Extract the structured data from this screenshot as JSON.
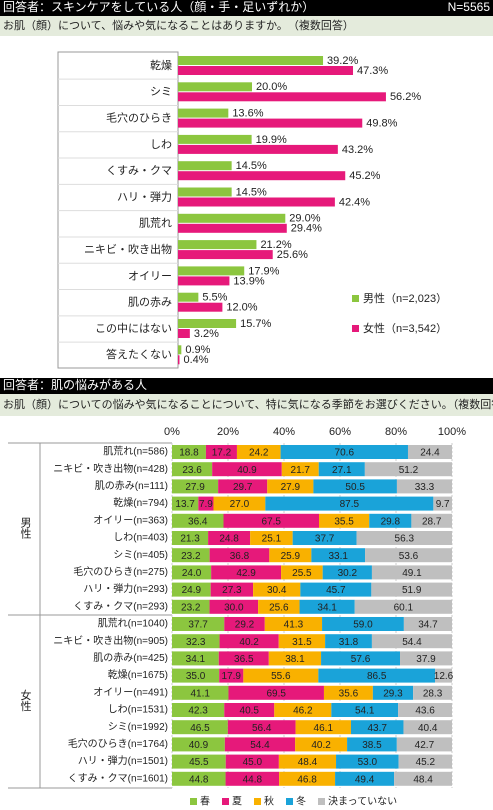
{
  "top_section": {
    "header": "回答者：スキンケアをしている人（顔・手・足いずれか）",
    "n": "N=5565",
    "question": "お肌（顔）について、悩みや気になることはありますか。　（複数回答）"
  },
  "bottom_section": {
    "header": "回答者：肌の悩みがある人",
    "question": "お肌（顔）についての悩みや気になることについて、特に気になる季節をお選びください。（複数回答）"
  },
  "chart_data": [
    {
      "type": "bar",
      "orientation": "horizontal",
      "xlim": [
        0,
        60
      ],
      "categories": [
        "乾燥",
        "シミ",
        "毛穴のひらき",
        "しわ",
        "くすみ・クマ",
        "ハリ・弾力",
        "肌荒れ",
        "ニキビ・吹き出物",
        "オイリー",
        "肌の赤み",
        "この中にはない",
        "答えたくない"
      ],
      "series": [
        {
          "name": "男性（n=2,023）",
          "color": "#8cc63f",
          "values": [
            39.2,
            20,
            13.6,
            19.9,
            14.5,
            14.5,
            29,
            21.2,
            17.9,
            5.5,
            15.7,
            0.9
          ],
          "value_labels": [
            "39.2%",
            "20.0%",
            "13.6%",
            "19.9%",
            "14.5%",
            "14.5%",
            "29.0%",
            "21.2%",
            "17.9%",
            "5.5%",
            "15.7%",
            "0.9%"
          ]
        },
        {
          "name": "女性（n=3,542）",
          "color": "#e6197a",
          "values": [
            47.3,
            56.2,
            49.8,
            43.2,
            45.2,
            42.4,
            29.4,
            25.6,
            13.9,
            12,
            3.2,
            0.4
          ],
          "value_labels": [
            "47.3%",
            "56.2%",
            "49.8%",
            "43.2%",
            "45.2%",
            "42.4%",
            "29.4%",
            "25.6%",
            "13.9%",
            "12.0%",
            "3.2%",
            "0.4%"
          ]
        }
      ]
    },
    {
      "type": "stacked_percent_bar",
      "orientation": "horizontal",
      "group": "男性",
      "xlim": [
        0,
        100
      ],
      "grid": true,
      "xticks": [
        {
          "value": 0,
          "label": "0%"
        },
        {
          "value": 20,
          "label": "20%"
        },
        {
          "value": 40,
          "label": "40%"
        },
        {
          "value": 60,
          "label": "60%"
        },
        {
          "value": 80,
          "label": "80%"
        },
        {
          "value": 100,
          "label": "100%"
        }
      ],
      "categories": [
        "肌荒れ(n=586)",
        "ニキビ・吹き出物(n=428)",
        "肌の赤み(n=111)",
        "乾燥(n=794)",
        "オイリー(n=363)",
        "しわ(n=403)",
        "シミ(n=405)",
        "毛穴のひらき(n=275)",
        "ハリ・弾力(n=293)",
        "くすみ・クマ(n=293)"
      ],
      "series": [
        {
          "name": "春",
          "color": "#8cc63f",
          "values": [
            18.8,
            23.6,
            27.9,
            13.7,
            36.4,
            21.3,
            23.2,
            24,
            24.9,
            23.2
          ],
          "value_labels": [
            "18.8",
            "23.6",
            "27.9",
            "13.7",
            "36.4",
            "21.3",
            "23.2",
            "24.0",
            "24.9",
            "23.2"
          ]
        },
        {
          "name": "夏",
          "color": "#e6197a",
          "values": [
            17.2,
            40.9,
            29.7,
            7.9,
            67.5,
            24.8,
            36.8,
            42.9,
            27.3,
            30
          ],
          "value_labels": [
            "17.2",
            "40.9",
            "29.7",
            "7.9",
            "67.5",
            "24.8",
            "36.8",
            "42.9",
            "27.3",
            "30.0"
          ]
        },
        {
          "name": "秋",
          "color": "#f9b100",
          "values": [
            24.2,
            21.7,
            27.9,
            27,
            35.5,
            25.1,
            25.9,
            25.5,
            30.4,
            25.6
          ],
          "value_labels": [
            "24.2",
            "21.7",
            "27.9",
            "27.0",
            "35.5",
            "25.1",
            "25.9",
            "25.5",
            "30.4",
            "25.6"
          ]
        },
        {
          "name": "冬",
          "color": "#1aa3d9",
          "values": [
            70.6,
            27.1,
            50.5,
            87.5,
            29.8,
            37.7,
            33.1,
            30.2,
            45.7,
            34.1
          ],
          "value_labels": [
            "70.6",
            "27.1",
            "50.5",
            "87.5",
            "29.8",
            "37.7",
            "33.1",
            "30.2",
            "45.7",
            "34.1"
          ]
        },
        {
          "name": "決まっていない",
          "color": "#bfbfbf",
          "values": [
            24.4,
            51.2,
            33.3,
            9.7,
            28.7,
            56.3,
            53.6,
            49.1,
            51.9,
            60.1
          ],
          "value_labels": [
            "24.4",
            "51.2",
            "33.3",
            "9.7",
            "28.7",
            "56.3",
            "53.6",
            "49.1",
            "51.9",
            "60.1"
          ]
        }
      ]
    },
    {
      "type": "stacked_percent_bar",
      "orientation": "horizontal",
      "group": "女性",
      "xlim": [
        0,
        100
      ],
      "categories": [
        "肌荒れ(n=1040)",
        "ニキビ・吹き出物(n=905)",
        "肌の赤み(n=425)",
        "乾燥(n=1675)",
        "オイリー(n=491)",
        "しわ(n=1531)",
        "シミ(n=1992)",
        "毛穴のひらき(n=1764)",
        "ハリ・弾力(n=1501)",
        "くすみ・クマ(n=1601)"
      ],
      "series": [
        {
          "color": "#8cc63f",
          "values": [
            37.7,
            32.3,
            34.1,
            35,
            41.1,
            42.3,
            46.5,
            40.9,
            45.5,
            44.8
          ],
          "value_labels": [
            "37.7",
            "32.3",
            "34.1",
            "35.0",
            "41.1",
            "42.3",
            "46.5",
            "40.9",
            "45.5",
            "44.8"
          ]
        },
        {
          "color": "#e6197a",
          "values": [
            29.2,
            40.2,
            36.5,
            17.9,
            69.5,
            40.5,
            56.4,
            54.4,
            45,
            44.8
          ],
          "value_labels": [
            "29.2",
            "40.2",
            "36.5",
            "17.9",
            "69.5",
            "40.5",
            "56.4",
            "54.4",
            "45.0",
            "44.8"
          ]
        },
        {
          "color": "#f9b100",
          "values": [
            41.3,
            31.5,
            38.1,
            55.6,
            35.6,
            46.2,
            46.1,
            40.2,
            48.4,
            46.8
          ],
          "value_labels": [
            "41.3",
            "31.5",
            "38.1",
            "55.6",
            "35.6",
            "46.2",
            "46.1",
            "40.2",
            "48.4",
            "46.8"
          ]
        },
        {
          "color": "#1aa3d9",
          "values": [
            59,
            31.8,
            57.6,
            86.5,
            29.3,
            54.1,
            43.7,
            38.5,
            53,
            49.4
          ],
          "value_labels": [
            "59.0",
            "31.8",
            "57.6",
            "86.5",
            "29.3",
            "54.1",
            "43.7",
            "38.5",
            "53.0",
            "49.4"
          ]
        },
        {
          "color": "#bfbfbf",
          "values": [
            34.7,
            54.4,
            37.9,
            12.6,
            28.3,
            43.6,
            40.4,
            42.7,
            45.2,
            48.4
          ],
          "value_labels": [
            "34.7",
            "54.4",
            "37.9",
            "12.6",
            "28.3",
            "43.6",
            "40.4",
            "42.7",
            "45.2",
            "48.4"
          ]
        }
      ]
    }
  ]
}
